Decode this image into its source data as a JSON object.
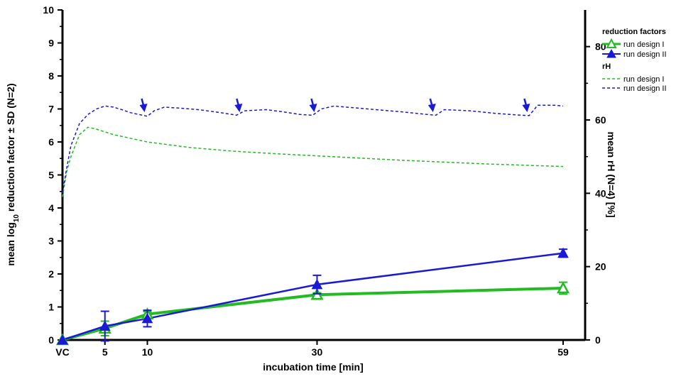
{
  "chart_data": {
    "type": "line",
    "xlabel": "incubation time [min]",
    "ylabel_prefix": "mean log",
    "ylabel_sub": "10",
    "ylabel_suffix": " reduction factor ± SD (N=2)",
    "y2label": "mean rH (N=4) [%]",
    "x_ticks": [
      {
        "label": "VC",
        "x": 0
      },
      {
        "label": "5",
        "x": 5
      },
      {
        "label": "10",
        "x": 10
      },
      {
        "label": "30",
        "x": 30
      },
      {
        "label": "59",
        "x": 59
      }
    ],
    "xlim": [
      0,
      59
    ],
    "ylim": [
      0,
      10
    ],
    "y_ticks": [
      0,
      1,
      2,
      3,
      4,
      5,
      6,
      7,
      8,
      9,
      10
    ],
    "y2lim": [
      0,
      90
    ],
    "y2_ticks": [
      0,
      20,
      40,
      60,
      80
    ],
    "legend": {
      "position": "top-right",
      "group1_title": "reduction factors",
      "group2_title": "rH"
    },
    "colors": {
      "design1": "#22bb22",
      "design2": "#1a1ad6"
    },
    "reduction_series": [
      {
        "name": "run design I",
        "color": "#22bb22",
        "marker": "open-triangle",
        "x": [
          0,
          5,
          10,
          30,
          59
        ],
        "y": [
          0,
          0.35,
          0.78,
          1.37,
          1.57
        ],
        "sd": [
          0,
          0.22,
          0.08,
          0.06,
          0.18
        ]
      },
      {
        "name": "run design II",
        "color": "#1a1ad6",
        "marker": "filled-triangle",
        "x": [
          0,
          5,
          10,
          30,
          59
        ],
        "y": [
          0,
          0.42,
          0.65,
          1.68,
          2.63
        ],
        "sd": [
          0,
          0.45,
          0.25,
          0.28,
          0.12
        ]
      }
    ],
    "rh_series": [
      {
        "name": "run design I",
        "color": "#22bb22",
        "style": "dashed",
        "x": [
          0,
          0.5,
          1,
          1.5,
          2,
          3,
          4,
          6,
          8,
          10,
          15,
          20,
          25,
          30,
          40,
          50,
          59
        ],
        "y": [
          39,
          46,
          50,
          53,
          56,
          58,
          57.5,
          56,
          55,
          54,
          52.5,
          51.5,
          50.8,
          50.2,
          49,
          48,
          47.3
        ]
      },
      {
        "name": "run design II",
        "color": "#1a1ad6",
        "style": "dashed",
        "x": [
          0,
          0.5,
          1,
          1.5,
          2,
          3,
          4,
          5,
          6,
          7,
          8,
          9,
          10,
          10.8,
          12,
          14,
          16,
          18,
          20,
          20.5,
          21.5,
          24,
          26,
          28,
          29.5,
          30.5,
          32,
          35,
          40,
          43,
          44,
          45,
          48,
          51,
          54,
          55,
          56,
          58,
          59
        ],
        "y": [
          40,
          47,
          53,
          56,
          59,
          61.5,
          63,
          63.8,
          63.5,
          62.8,
          62,
          61.5,
          61,
          62.5,
          63.5,
          63.2,
          62.8,
          62.2,
          61.5,
          61.3,
          62.5,
          62.8,
          62.2,
          61.5,
          61.3,
          63,
          63.8,
          63.2,
          62.2,
          61.5,
          61.3,
          62.8,
          62.5,
          61.8,
          61.3,
          61.2,
          64,
          64,
          63.8
        ]
      }
    ],
    "rh_event_arrows_x": [
      9.5,
      20.7,
      29.5,
      43.5,
      54.6
    ]
  }
}
